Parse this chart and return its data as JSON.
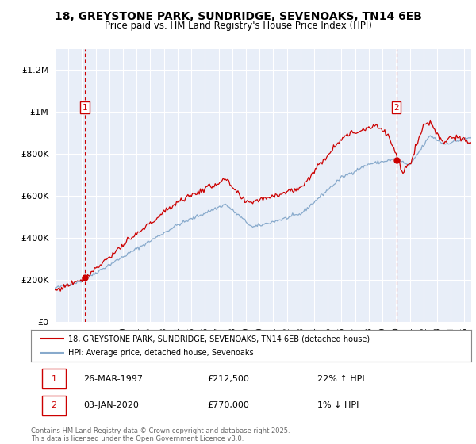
{
  "title": "18, GREYSTONE PARK, SUNDRIDGE, SEVENOAKS, TN14 6EB",
  "subtitle": "Price paid vs. HM Land Registry's House Price Index (HPI)",
  "red_label": "18, GREYSTONE PARK, SUNDRIDGE, SEVENOAKS, TN14 6EB (detached house)",
  "blue_label": "HPI: Average price, detached house, Sevenoaks",
  "marker1_date": "26-MAR-1997",
  "marker1_price": 212500,
  "marker1_hpi": "22% ↑ HPI",
  "marker2_date": "03-JAN-2020",
  "marker2_price": 770000,
  "marker2_hpi": "1% ↓ HPI",
  "footer1": "Contains HM Land Registry data © Crown copyright and database right 2025.",
  "footer2": "This data is licensed under the Open Government Licence v3.0.",
  "ylim": [
    0,
    1300000
  ],
  "yticks": [
    0,
    200000,
    400000,
    600000,
    800000,
    1000000,
    1200000
  ],
  "ytick_labels": [
    "£0",
    "£200K",
    "£400K",
    "£600K",
    "£800K",
    "£1M",
    "£1.2M"
  ],
  "xmin": 1995.0,
  "xmax": 2025.5,
  "bg_color": "#e8eef8",
  "plot_bg": "#e8eef8",
  "grid_color": "#ffffff",
  "red_color": "#cc0000",
  "blue_color": "#88aacc",
  "marker1_x": 1997.23,
  "marker2_x": 2020.01
}
